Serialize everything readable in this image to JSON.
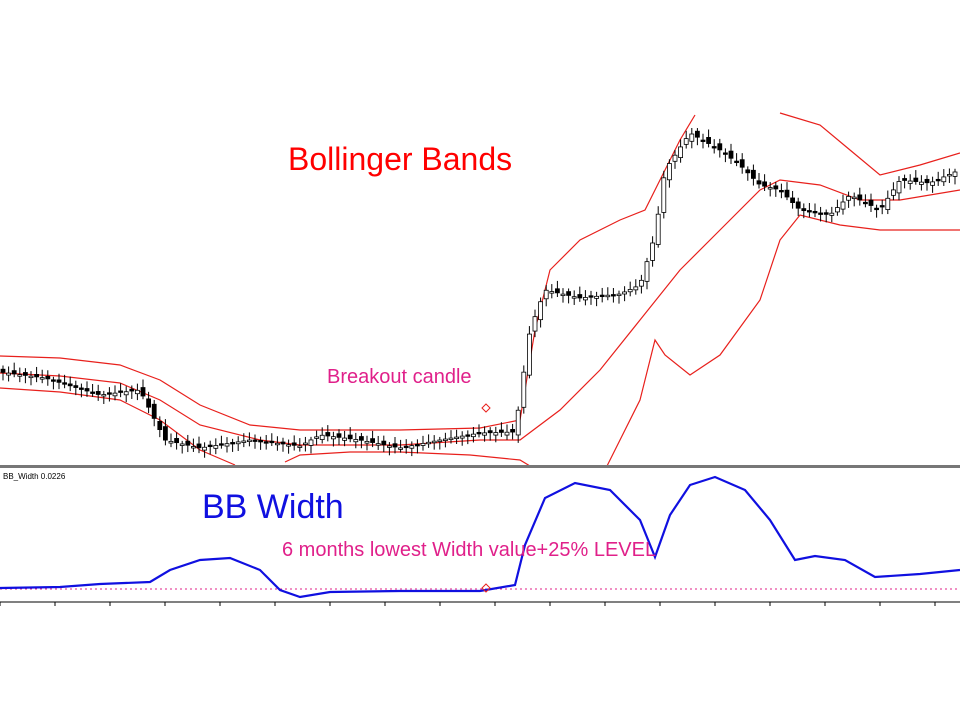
{
  "price_panel": {
    "title": "Bollinger Bands",
    "annotation": "Breakout candle"
  },
  "indicator_panel": {
    "header": "BB_Width 0.0226",
    "title": "BB Width",
    "annotation": "6 months lowest Width value+25% LEVEL"
  }
}
